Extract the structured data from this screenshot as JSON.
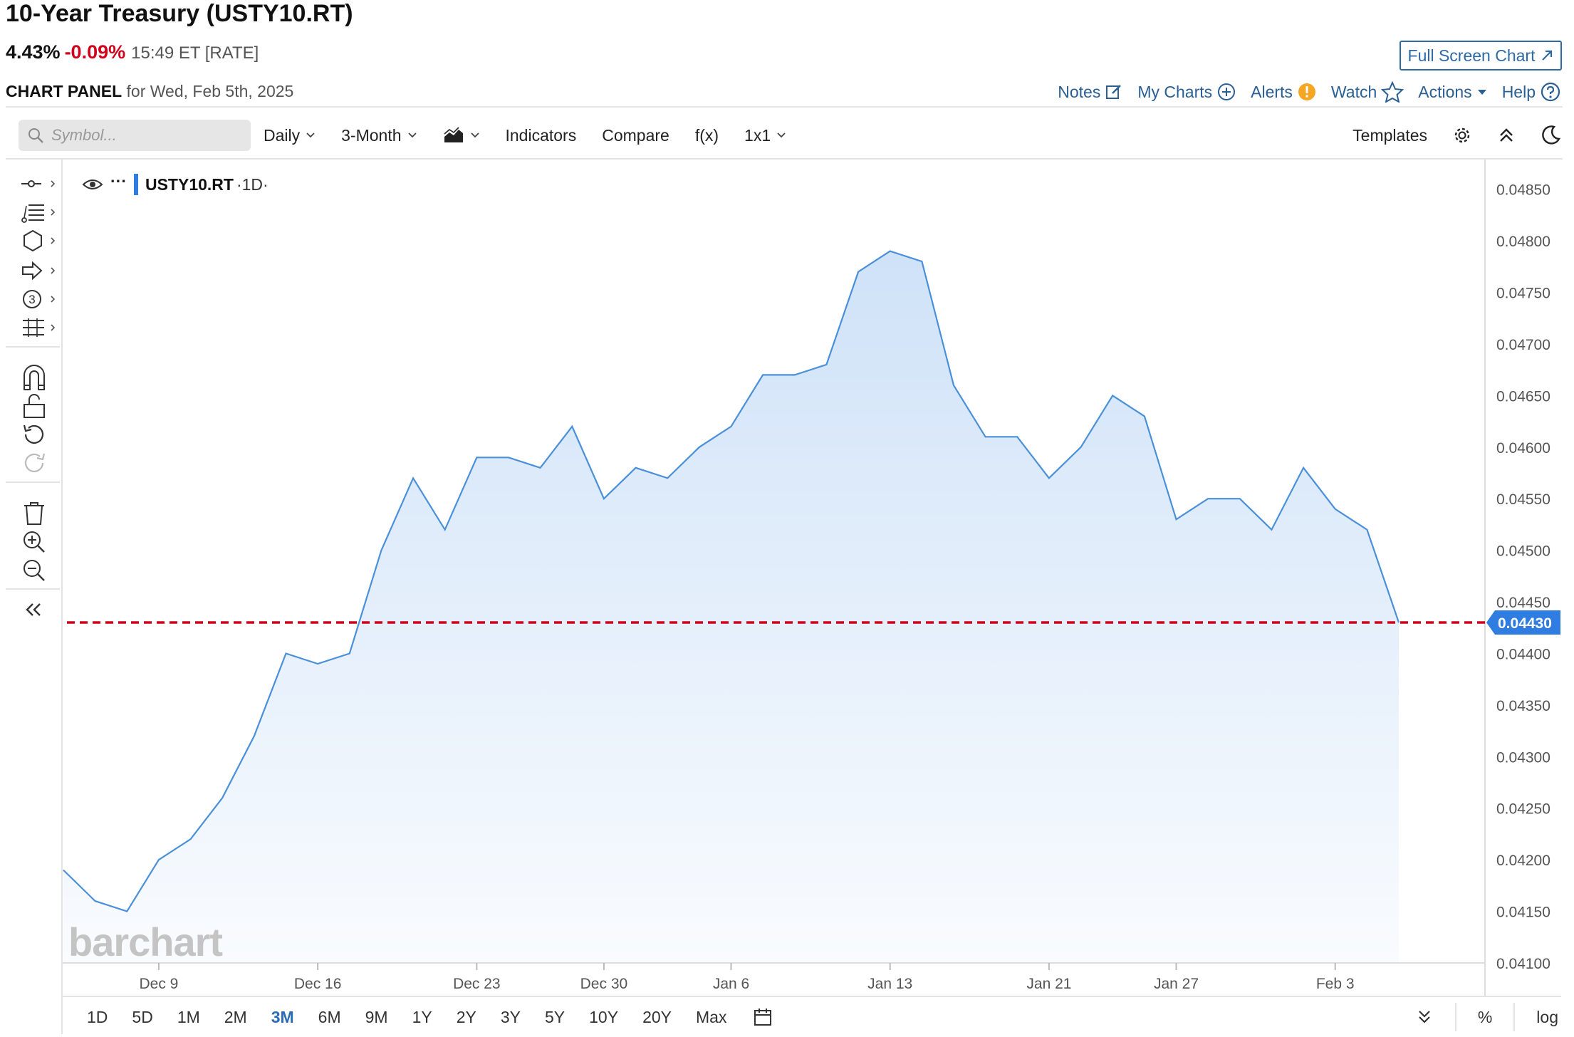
{
  "header": {
    "title": "10-Year Treasury (USTY10.RT)",
    "last": "4.43%",
    "change": "-0.09%",
    "time": "15:49 ET [RATE]",
    "full_screen_label": "Full Screen Chart",
    "panel_label": "CHART PANEL",
    "panel_date": "for Wed, Feb 5th, 2025"
  },
  "links": {
    "notes": "Notes",
    "my_charts": "My Charts",
    "alerts": "Alerts",
    "watch": "Watch",
    "actions": "Actions",
    "help": "Help"
  },
  "toolbar": {
    "search_placeholder": "Symbol...",
    "interval": "Daily",
    "period": "3-Month",
    "indicators": "Indicators",
    "compare": "Compare",
    "fx": "f(x)",
    "layout": "1x1",
    "templates": "Templates"
  },
  "legend": {
    "symbol": "USTY10.RT",
    "interval": "·1D·"
  },
  "ranges": [
    "1D",
    "5D",
    "1M",
    "2M",
    "3M",
    "6M",
    "9M",
    "1Y",
    "2Y",
    "3Y",
    "5Y",
    "10Y",
    "20Y",
    "Max"
  ],
  "active_range": "3M",
  "bottom": {
    "percent": "%",
    "log": "log"
  },
  "watermark": "barchart",
  "colors": {
    "line": "#4a90d9",
    "fill": "#cfe2f8",
    "price_line": "#d0021b",
    "accent": "#2f7de1"
  },
  "chart_data": {
    "type": "area",
    "series": [
      {
        "values": [
          0.0419,
          0.0416,
          0.0415,
          0.042,
          0.0422,
          0.0426,
          0.0432,
          0.044,
          0.0439,
          0.044,
          0.045,
          0.0457,
          0.0452,
          0.0459,
          0.0459,
          0.0458,
          0.0462,
          0.0455,
          0.0458,
          0.0457,
          0.046,
          0.0462,
          0.0467,
          0.0467,
          0.0468,
          0.0477,
          0.0479,
          0.0478,
          0.0466,
          0.0461,
          0.0461,
          0.0457,
          0.046,
          0.0465,
          0.0463,
          0.0453,
          0.0455,
          0.0455,
          0.0452,
          0.0458,
          0.0454,
          0.0452,
          0.0443
        ]
      }
    ],
    "x_tick_labels": [
      "Dec 9",
      "Dec 16",
      "Dec 23",
      "Dec 30",
      "Jan 6",
      "Jan 13",
      "Jan 21",
      "Jan 27",
      "Feb 3"
    ],
    "x_tick_index": [
      3,
      8,
      13,
      17,
      21,
      26,
      31,
      35,
      40
    ],
    "y_ticks": [
      "0.04100",
      "0.04150",
      "0.04200",
      "0.04250",
      "0.04300",
      "0.04350",
      "0.04400",
      "0.04450",
      "0.04500",
      "0.04550",
      "0.04600",
      "0.04650",
      "0.04700",
      "0.04750",
      "0.04800",
      "0.04850"
    ],
    "ylim": [
      0.041,
      0.04865
    ],
    "last_value_label": "0.04430",
    "last_value": 0.0443,
    "grid": false
  }
}
